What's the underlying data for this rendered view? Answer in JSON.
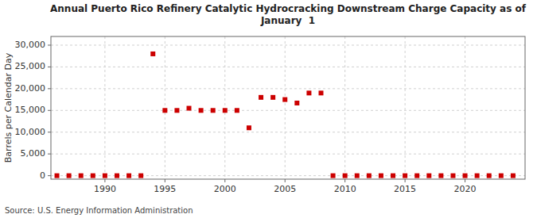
{
  "chart_data": {
    "type": "scatter",
    "title": "Annual Puerto Rico Refinery Catalytic Hydrocracking Downstream Charge Capacity as of\nJanuary  1",
    "ylabel": "Barrels per Calendar Day",
    "source": "Source: U.S. Energy Information Administration",
    "color": "#cc0000",
    "marker": "square",
    "grid": true,
    "x": [
      1986,
      1987,
      1988,
      1989,
      1990,
      1991,
      1992,
      1993,
      1994,
      1995,
      1996,
      1997,
      1998,
      1999,
      2000,
      2001,
      2002,
      2003,
      2004,
      2005,
      2006,
      2007,
      2008,
      2009,
      2010,
      2011,
      2012,
      2013,
      2014,
      2015,
      2016,
      2017,
      2018,
      2019,
      2020,
      2021,
      2022,
      2023,
      2024
    ],
    "values": [
      0,
      0,
      0,
      0,
      0,
      0,
      0,
      0,
      28000,
      15000,
      15000,
      15500,
      15000,
      15000,
      15000,
      15000,
      11000,
      18000,
      18000,
      17500,
      16700,
      19000,
      19000,
      0,
      0,
      0,
      0,
      0,
      0,
      0,
      0,
      0,
      0,
      0,
      0,
      0,
      0,
      0,
      0
    ],
    "xlim": [
      1985.5,
      2025
    ],
    "ylim": [
      -800,
      32000
    ],
    "xticks": [
      1990,
      1995,
      2000,
      2005,
      2010,
      2015,
      2020
    ],
    "yticks": [
      0,
      {
        "value": 5000,
        "label": "5,000"
      },
      {
        "value": 10000,
        "label": "10,000"
      },
      {
        "value": 15000,
        "label": "15,000"
      },
      {
        "value": 20000,
        "label": "20,000"
      },
      {
        "value": 25000,
        "label": "25,000"
      },
      {
        "value": 30000,
        "label": "30,000"
      }
    ]
  }
}
